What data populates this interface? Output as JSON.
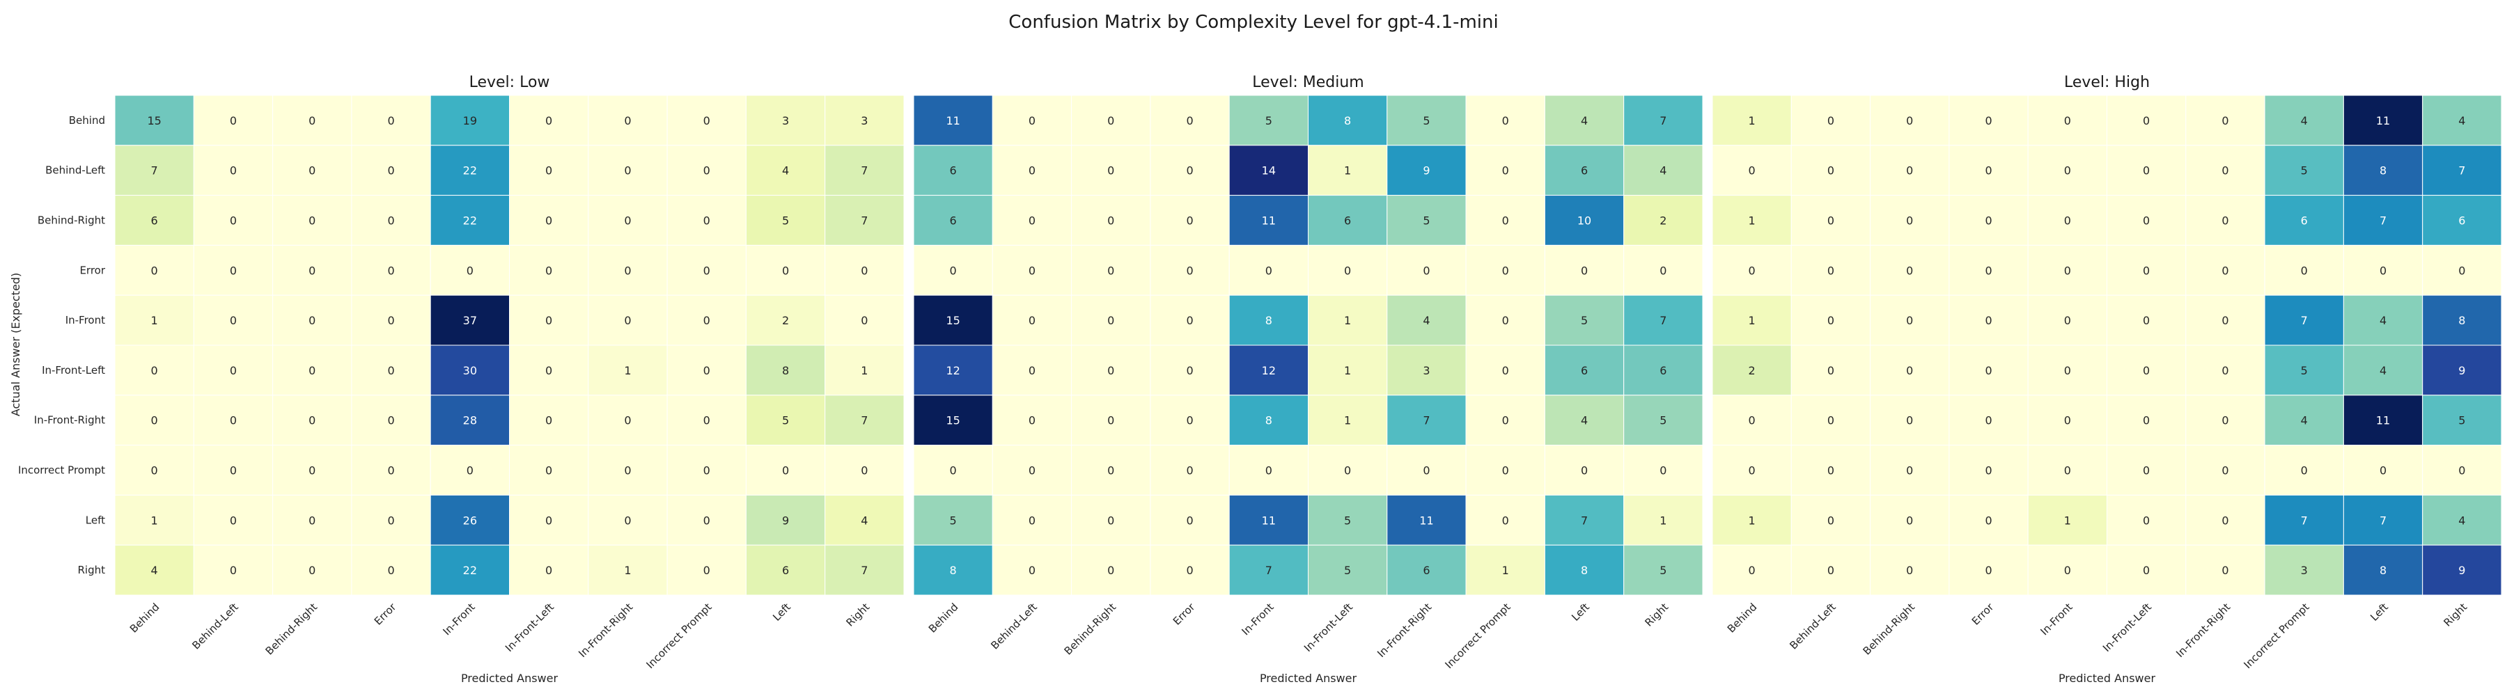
{
  "chart_data": {
    "type": "heatmap",
    "title": "Confusion Matrix by Complexity Level for gpt-4.1-mini",
    "ylabel": "Actual Answer (Expected)",
    "xlabel": "Predicted Answer",
    "colormap": "YlGnBu",
    "colors": [
      "#ffffd9",
      "#edf8b1",
      "#c7e9b4",
      "#7fcdbb",
      "#41b6c4",
      "#1d91c0",
      "#225ea8",
      "#253494",
      "#081d58"
    ],
    "row_labels": [
      "Behind",
      "Behind-Left",
      "Behind-Right",
      "Error",
      "In-Front",
      "In-Front-Left",
      "In-Front-Right",
      "Incorrect Prompt",
      "Left",
      "Right"
    ],
    "panels": [
      {
        "title": "Level: Low",
        "col_labels": [
          "Behind",
          "Behind-Left",
          "Behind-Right",
          "Error",
          "In-Front",
          "In-Front-Left",
          "In-Front-Right",
          "Incorrect Prompt",
          "Left",
          "Right"
        ],
        "matrix": [
          [
            15,
            0,
            0,
            0,
            19,
            0,
            0,
            0,
            3,
            3
          ],
          [
            7,
            0,
            0,
            0,
            22,
            0,
            0,
            0,
            4,
            7
          ],
          [
            6,
            0,
            0,
            0,
            22,
            0,
            0,
            0,
            5,
            7
          ],
          [
            0,
            0,
            0,
            0,
            0,
            0,
            0,
            0,
            0,
            0
          ],
          [
            1,
            0,
            0,
            0,
            37,
            0,
            0,
            0,
            2,
            0
          ],
          [
            0,
            0,
            0,
            0,
            30,
            0,
            1,
            0,
            8,
            1
          ],
          [
            0,
            0,
            0,
            0,
            28,
            0,
            0,
            0,
            5,
            7
          ],
          [
            0,
            0,
            0,
            0,
            0,
            0,
            0,
            0,
            0,
            0
          ],
          [
            1,
            0,
            0,
            0,
            26,
            0,
            0,
            0,
            9,
            4
          ],
          [
            4,
            0,
            0,
            0,
            22,
            0,
            1,
            0,
            6,
            7
          ]
        ]
      },
      {
        "title": "Level: Medium",
        "col_labels": [
          "Behind",
          "Behind-Left",
          "Behind-Right",
          "Error",
          "In-Front",
          "In-Front-Left",
          "In-Front-Right",
          "Incorrect Prompt",
          "Left",
          "Right"
        ],
        "matrix": [
          [
            11,
            0,
            0,
            0,
            5,
            8,
            5,
            0,
            4,
            7
          ],
          [
            6,
            0,
            0,
            0,
            14,
            1,
            9,
            0,
            6,
            4
          ],
          [
            6,
            0,
            0,
            0,
            11,
            6,
            5,
            0,
            10,
            2
          ],
          [
            0,
            0,
            0,
            0,
            0,
            0,
            0,
            0,
            0,
            0
          ],
          [
            15,
            0,
            0,
            0,
            8,
            1,
            4,
            0,
            5,
            7
          ],
          [
            12,
            0,
            0,
            0,
            12,
            1,
            3,
            0,
            6,
            6
          ],
          [
            15,
            0,
            0,
            0,
            8,
            1,
            7,
            0,
            4,
            5
          ],
          [
            0,
            0,
            0,
            0,
            0,
            0,
            0,
            0,
            0,
            0
          ],
          [
            5,
            0,
            0,
            0,
            11,
            5,
            11,
            0,
            7,
            1
          ],
          [
            8,
            0,
            0,
            0,
            7,
            5,
            6,
            1,
            8,
            5
          ]
        ]
      },
      {
        "title": "Level: High",
        "col_labels": [
          "Behind",
          "Behind-Left",
          "Behind-Right",
          "Error",
          "In-Front",
          "In-Front-Left",
          "In-Front-Right",
          "Incorrect Prompt",
          "Left",
          "Right"
        ],
        "matrix": [
          [
            1,
            0,
            0,
            0,
            0,
            0,
            0,
            4,
            11,
            4
          ],
          [
            0,
            0,
            0,
            0,
            0,
            0,
            0,
            5,
            8,
            7
          ],
          [
            1,
            0,
            0,
            0,
            0,
            0,
            0,
            6,
            7,
            6
          ],
          [
            0,
            0,
            0,
            0,
            0,
            0,
            0,
            0,
            0,
            0
          ],
          [
            1,
            0,
            0,
            0,
            0,
            0,
            0,
            7,
            4,
            8
          ],
          [
            2,
            0,
            0,
            0,
            0,
            0,
            0,
            5,
            4,
            9
          ],
          [
            0,
            0,
            0,
            0,
            0,
            0,
            0,
            4,
            11,
            5
          ],
          [
            0,
            0,
            0,
            0,
            0,
            0,
            0,
            0,
            0,
            0
          ],
          [
            1,
            0,
            0,
            0,
            1,
            0,
            0,
            7,
            7,
            4
          ],
          [
            0,
            0,
            0,
            0,
            0,
            0,
            0,
            3,
            8,
            9
          ]
        ]
      }
    ]
  }
}
